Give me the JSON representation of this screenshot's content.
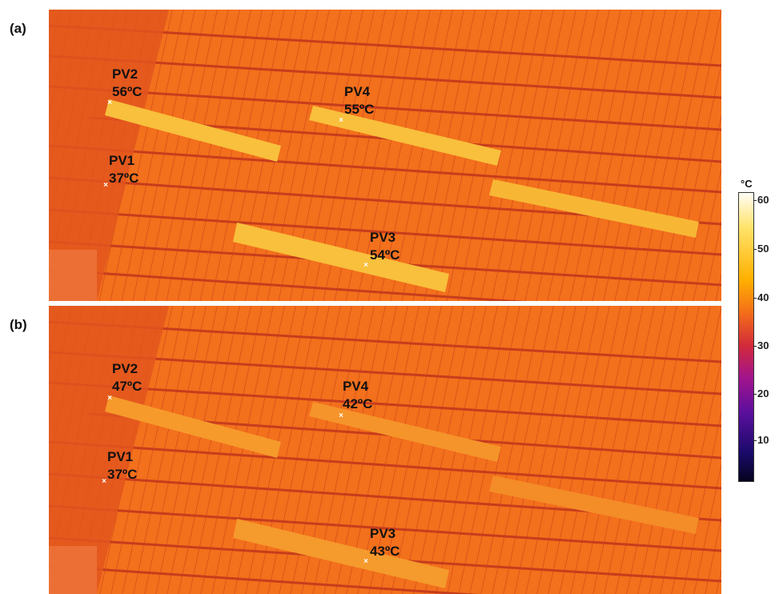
{
  "panels": [
    {
      "letter": "(a)",
      "points": [
        {
          "name": "PV1",
          "temp": "37ºC"
        },
        {
          "name": "PV2",
          "temp": "56ºC"
        },
        {
          "name": "PV3",
          "temp": "54ºC"
        },
        {
          "name": "PV4",
          "temp": "55ºC"
        }
      ]
    },
    {
      "letter": "(b)",
      "points": [
        {
          "name": "PV1",
          "temp": "37ºC"
        },
        {
          "name": "PV2",
          "temp": "47ºC"
        },
        {
          "name": "PV3",
          "temp": "43ºC"
        },
        {
          "name": "PV4",
          "temp": "42ºC"
        }
      ]
    }
  ],
  "colorbar": {
    "unit": "°C",
    "ticks": [
      "60",
      "50",
      "40",
      "30",
      "20",
      "10"
    ],
    "colors": {
      "hot": "#fffdf5",
      "warm": "#ffb000",
      "mid": "#d22a3a",
      "cool": "#5c0f9e",
      "cold": "#05031f"
    }
  },
  "marker_glyph": "×"
}
